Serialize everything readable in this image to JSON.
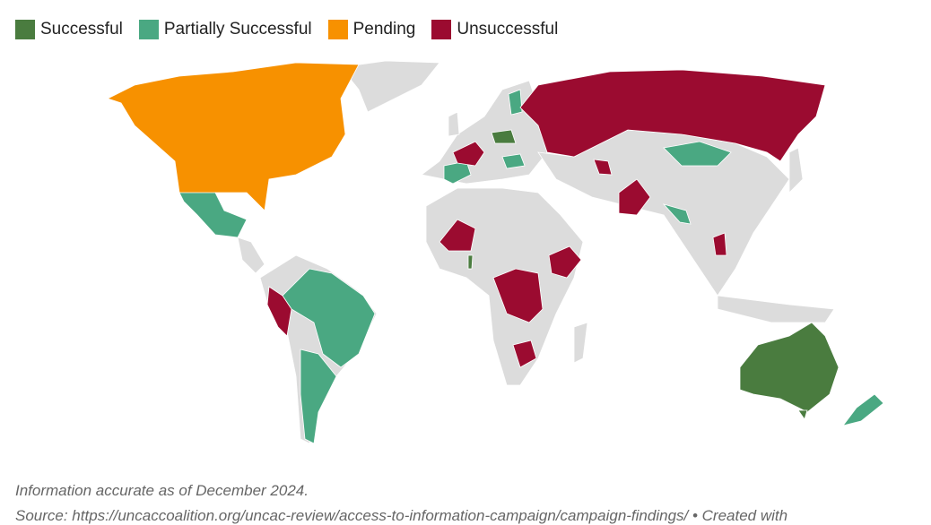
{
  "legend": [
    {
      "label": "Successful",
      "color": "#4a7c3f"
    },
    {
      "label": "Partially Successful",
      "color": "#4aa882"
    },
    {
      "label": "Pending",
      "color": "#f79100"
    },
    {
      "label": "Unsuccessful",
      "color": "#9b0b30"
    }
  ],
  "base_color": "#dcdcdc",
  "footnote": "Information accurate as of December 2024.",
  "source": "Source: https://uncaccoalition.org/uncac-review/access-to-information-campaign/campaign-findings/ • Created with"
}
